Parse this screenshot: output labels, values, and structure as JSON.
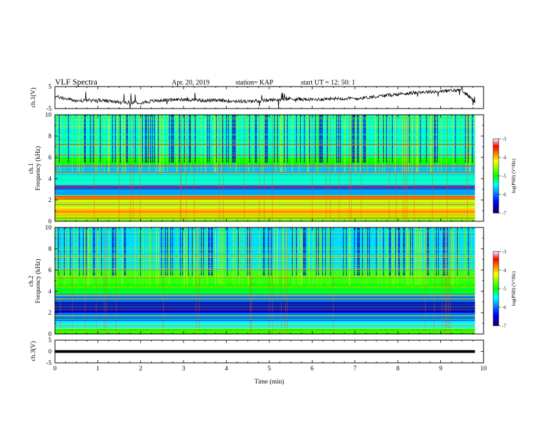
{
  "header": {
    "title": "VLF Spectra",
    "date": "Apr. 20, 2019",
    "station": "station= KAP",
    "start": "start  UT  =   12: 50: 1"
  },
  "colorbar": {
    "label": "log(PSD) (V²/Hz)",
    "ticks": [
      "-3",
      "-4",
      "-5",
      "-6",
      "-7"
    ],
    "colors": [
      "#ffffff",
      "#ff0000",
      "#ffff00",
      "#00ff00",
      "#00ffff",
      "#0000ff",
      "#000060"
    ]
  },
  "chart_data": [
    {
      "type": "line",
      "panel": "ch1-waveform",
      "ylabel": "ch.1(V)",
      "ylim": [
        -5,
        5
      ],
      "yticks": [
        "5",
        "-5"
      ],
      "x": [
        0,
        0.5,
        1,
        1.5,
        2,
        2.5,
        3,
        3.5,
        4,
        4.5,
        5,
        5.5,
        6,
        6.5,
        7,
        7.5,
        8,
        8.5,
        9,
        9.5,
        9.8
      ],
      "y": [
        0.5,
        -1.5,
        -1.2,
        -2.2,
        -2.2,
        -1.2,
        -0.8,
        -1.3,
        -1.4,
        -1.8,
        -1.2,
        -0.5,
        -1.0,
        -0.3,
        -0.5,
        0.5,
        1.5,
        2.5,
        2.8,
        3.5,
        -2.0
      ]
    },
    {
      "type": "heatmap",
      "panel": "ch1-spectrogram",
      "ylabel": "Frequency  (kHz)",
      "channel": "ch.1",
      "ylim": [
        0,
        10
      ],
      "yticks": [
        "0",
        "2",
        "4",
        "6",
        "8",
        "10"
      ],
      "xlim": [
        0,
        9.8
      ],
      "bands": [
        {
          "from": 0,
          "to": 0.5,
          "level": -4.5
        },
        {
          "from": 0.5,
          "to": 1.2,
          "level": -4.0
        },
        {
          "from": 1.2,
          "to": 2.0,
          "level": -4.3
        },
        {
          "from": 2.0,
          "to": 2.4,
          "level": -3.8
        },
        {
          "from": 2.4,
          "to": 3.0,
          "level": -5.8
        },
        {
          "from": 3.0,
          "to": 3.4,
          "level": -6.3
        },
        {
          "from": 3.4,
          "to": 4.6,
          "level": -5.4
        },
        {
          "from": 4.6,
          "to": 5.3,
          "level": -5.7
        },
        {
          "from": 5.3,
          "to": 6.0,
          "level": -5.0
        },
        {
          "from": 6.0,
          "to": 10.0,
          "level": -5.4
        }
      ],
      "lines_khz": [
        0.3,
        0.9,
        1.6,
        2.1,
        2.3,
        3.2,
        4.6,
        5.2,
        6.2,
        7.2
      ],
      "line_level": -3.6
    },
    {
      "type": "heatmap",
      "panel": "ch2-spectrogram",
      "ylabel": "Frequency  (kHz)",
      "channel": "ch.2",
      "ylim": [
        0,
        10
      ],
      "yticks": [
        "0",
        "2",
        "4",
        "6",
        "8",
        "10"
      ],
      "xlim": [
        0,
        9.8
      ],
      "bands": [
        {
          "from": 0,
          "to": 0.5,
          "level": -5.0
        },
        {
          "from": 0.5,
          "to": 1.2,
          "level": -5.5
        },
        {
          "from": 1.2,
          "to": 2.0,
          "level": -6.0
        },
        {
          "from": 2.0,
          "to": 3.0,
          "level": -6.6
        },
        {
          "from": 3.0,
          "to": 3.8,
          "level": -6.0
        },
        {
          "from": 3.8,
          "to": 4.8,
          "level": -5.0
        },
        {
          "from": 4.8,
          "to": 6.0,
          "level": -4.8
        },
        {
          "from": 6.0,
          "to": 10.0,
          "level": -5.6
        }
      ],
      "lines_khz": [
        0.2,
        0.9,
        1.7,
        3.3,
        3.6,
        4.4,
        5.4,
        6.1,
        7.2
      ],
      "line_level": -4.0
    },
    {
      "type": "line",
      "panel": "ch3-waveform",
      "ylabel": "ch.3(V)",
      "ylim": [
        -5,
        5
      ],
      "yticks": [
        "5",
        "0",
        "-5"
      ],
      "x": [
        0,
        9.8
      ],
      "y": [
        0,
        0
      ]
    }
  ],
  "xaxis": {
    "label": "Time  (min)",
    "ticks": [
      "0",
      "1",
      "2",
      "3",
      "4",
      "5",
      "6",
      "7",
      "8",
      "9",
      "10"
    ]
  }
}
